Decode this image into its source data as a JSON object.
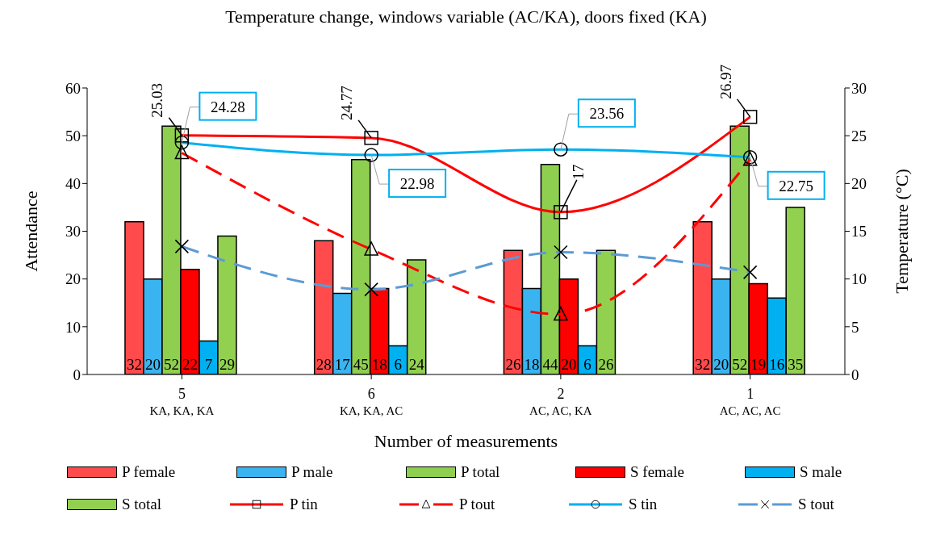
{
  "chart_data": {
    "type": "bar",
    "title": "Temperature change, windows variable (AC/KA), doors fixed (KA)",
    "xlabel": "Number of measurements",
    "ylabel": "Attendance",
    "y2label": "Temperature (°C)",
    "categories": [
      "5\nKA, KA, KA",
      "6\nKA, KA, AC",
      "2\nAC, AC, KA",
      "1\nAC, AC, AC"
    ],
    "ylim": [
      0,
      60
    ],
    "yticks": [
      0,
      10,
      20,
      30,
      40,
      50,
      60
    ],
    "y2lim": [
      0,
      30
    ],
    "y2ticks": [
      0,
      5,
      10,
      15,
      20,
      25,
      30
    ],
    "legend": "bottom",
    "series": [
      {
        "name": "P female",
        "color": "#ff4b4b",
        "values": [
          32,
          28,
          26,
          32
        ],
        "value_labels": [
          "32",
          "28",
          "26",
          "32"
        ]
      },
      {
        "name": "P male",
        "color": "#3ab4f0",
        "values": [
          20,
          17,
          18,
          20
        ],
        "value_labels": [
          "20",
          "17",
          "18",
          "20"
        ]
      },
      {
        "name": "P total",
        "color": "#8fcf50",
        "values": [
          52,
          45,
          44,
          52
        ],
        "value_labels": [
          "52",
          "45",
          "44",
          "52"
        ]
      },
      {
        "name": "S female",
        "color": "#ff0000",
        "values": [
          22,
          18,
          20,
          19
        ],
        "value_labels": [
          "22",
          "18",
          "20",
          "19"
        ]
      },
      {
        "name": "S male",
        "color": "#00b0f0",
        "values": [
          7,
          6,
          6,
          16
        ],
        "value_labels": [
          "7",
          "6",
          "6",
          "16"
        ]
      },
      {
        "name": "S total",
        "color": "#92d050",
        "values": [
          29,
          24,
          26,
          35
        ],
        "value_labels": [
          "29",
          "24",
          "26",
          "35"
        ]
      },
      {
        "name": "P tin",
        "type": "line",
        "axis": "y2",
        "color": "#ff0000",
        "marker": "square",
        "line_style": "solid",
        "values": [
          25.03,
          24.77,
          17,
          26.97
        ],
        "value_labels": [
          "25.03",
          "24.77",
          "17",
          "26.97"
        ]
      },
      {
        "name": "P tout",
        "type": "line",
        "axis": "y2",
        "color": "#ff0000",
        "marker": "triangle",
        "line_style": "dashed",
        "values": [
          23.2,
          13.1,
          6.3,
          22.5
        ]
      },
      {
        "name": "S tin",
        "type": "line",
        "axis": "y2",
        "color": "#00b0f0",
        "marker": "circle",
        "line_style": "solid",
        "values": [
          24.28,
          22.98,
          23.56,
          22.75
        ],
        "value_labels": [
          "24.28",
          "22.98",
          "23.56",
          "22.75"
        ]
      },
      {
        "name": "S tout",
        "type": "line",
        "axis": "y2",
        "color": "#5b9bd5",
        "marker": "cross",
        "line_style": "dashed",
        "values": [
          13.4,
          8.9,
          12.8,
          10.7
        ]
      }
    ]
  }
}
